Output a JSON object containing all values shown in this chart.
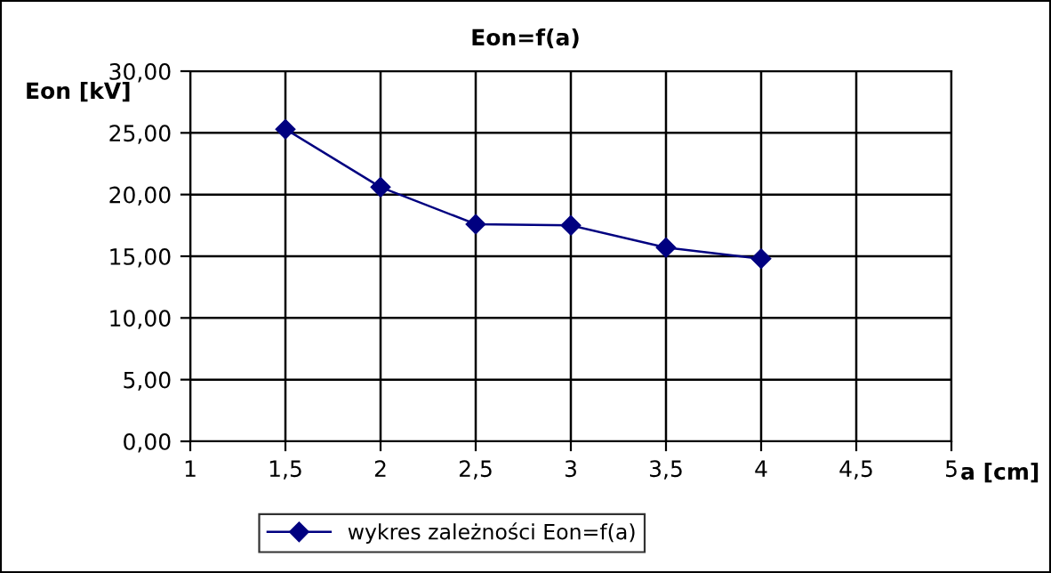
{
  "chart_data": {
    "type": "line",
    "title": "Eon=f(a)",
    "xlabel": "a [cm]",
    "ylabel": "Eon [kV]",
    "x": [
      1.5,
      2,
      2.5,
      3,
      3.5,
      4
    ],
    "series": [
      {
        "name": "wykres zależności Eon=f(a)",
        "color": "#000080",
        "values": [
          25.3,
          20.6,
          17.6,
          17.5,
          15.7,
          14.8
        ]
      }
    ],
    "xlim": [
      1,
      5
    ],
    "xticks": [
      1,
      {
        "value": 1.5,
        "label": "1,5"
      },
      2,
      {
        "value": 2.5,
        "label": "2,5"
      },
      3,
      {
        "value": 3.5,
        "label": "3,5"
      },
      4,
      {
        "value": 4.5,
        "label": "4,5"
      },
      5
    ],
    "ylim": [
      0,
      30
    ],
    "yticks": [
      {
        "value": 0,
        "label": "0,00"
      },
      {
        "value": 5,
        "label": "5,00"
      },
      {
        "value": 10,
        "label": "10,00"
      },
      {
        "value": 15,
        "label": "15,00"
      },
      {
        "value": 20,
        "label": "20,00"
      },
      {
        "value": 25,
        "label": "25,00"
      },
      {
        "value": 30,
        "label": "30,00"
      }
    ],
    "grid": true,
    "legend": "bottom",
    "marker": "diamond",
    "line_style": "solid"
  }
}
